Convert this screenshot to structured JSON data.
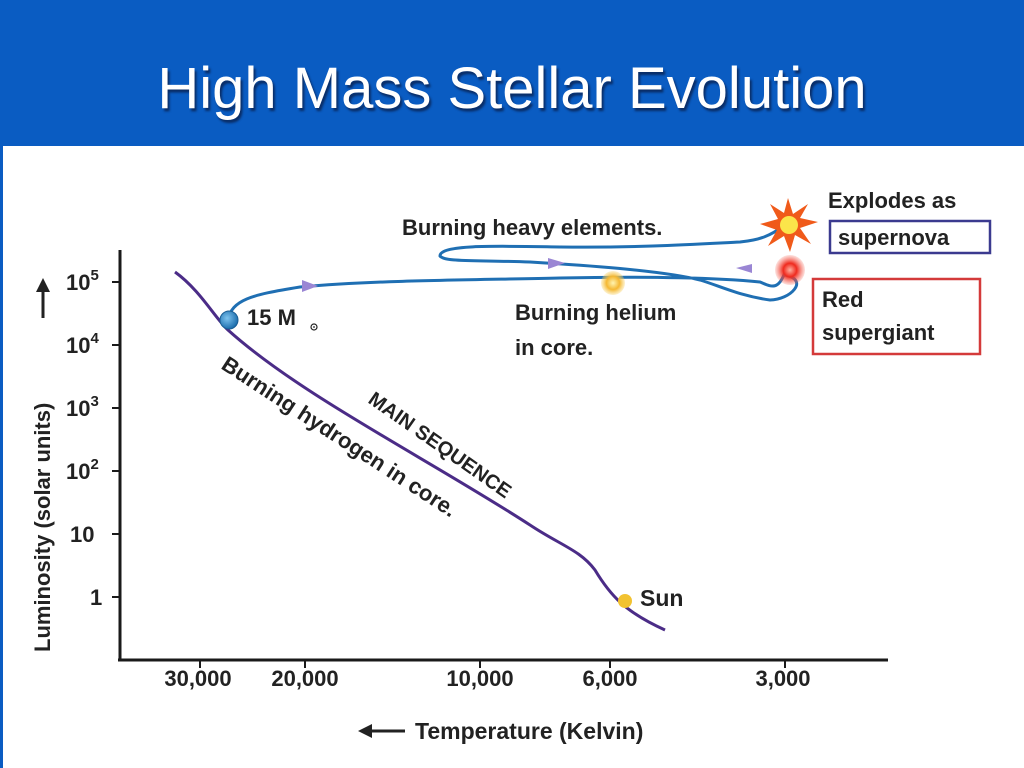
{
  "slide": {
    "title": "High Mass Stellar Evolution"
  },
  "axes": {
    "y_label": "Luminosity (solar units)",
    "x_label": "Temperature (Kelvin)",
    "y_ticks": [
      {
        "base": "10",
        "exp": "5"
      },
      {
        "base": "10",
        "exp": "4"
      },
      {
        "base": "10",
        "exp": "3"
      },
      {
        "base": "10",
        "exp": "2"
      },
      {
        "base": "10",
        "exp": ""
      },
      {
        "base": "1",
        "exp": ""
      }
    ],
    "x_ticks": [
      "30,000",
      "20,000",
      "10,000",
      "6,000",
      "3,000"
    ]
  },
  "labels": {
    "main_sequence": "MAIN SEQUENCE",
    "burning_hydrogen": "Burning hydrogen in core.",
    "star_mass": "15 M",
    "sun": "Sun",
    "burning_heavy": "Burning heavy elements.",
    "burning_helium_1": "Burning helium",
    "burning_helium_2": "in core.",
    "explodes_as": "Explodes as",
    "supernova": "supernova",
    "red_supergiant_1": "Red",
    "red_supergiant_2": "supergiant"
  },
  "colors": {
    "title_bar": "#0a5cc2",
    "main_sequence_line": "#4b2c87",
    "evolution_track": "#1f6fb3",
    "track_arrows": "#9a86d4",
    "supernova_box": "#3b3a8f",
    "red_supergiant_box": "#d43a3a",
    "sun_dot": "#f2c230",
    "helium_star": "#f5b833",
    "red_supergiant_star": "#e8201b",
    "start_star": "#2a87c8"
  }
}
